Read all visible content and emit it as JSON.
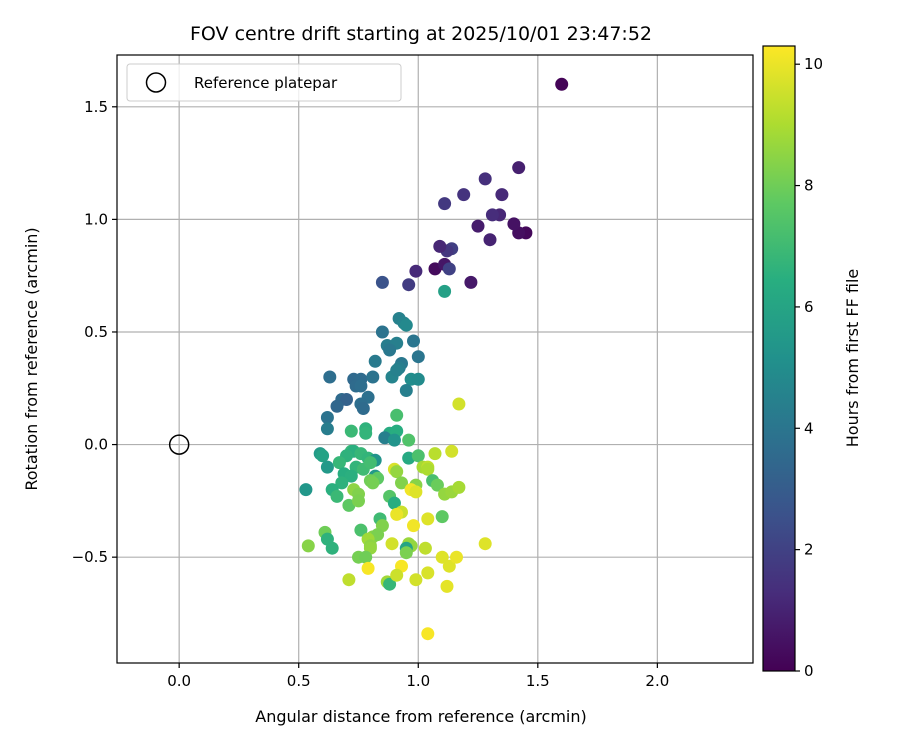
{
  "chart_data": {
    "type": "scatter",
    "title": "FOV centre drift starting at 2025/10/01 23:47:52",
    "xlabel": "Angular distance from reference (arcmin)",
    "ylabel": "Rotation from reference (arcmin)",
    "xlim": [
      -0.26,
      2.4
    ],
    "ylim": [
      -0.97,
      1.73
    ],
    "xticks": [
      0.0,
      0.5,
      1.0,
      1.5,
      2.0
    ],
    "xtick_labels": [
      "0.0",
      "0.5",
      "1.0",
      "1.5",
      "2.0"
    ],
    "yticks": [
      -0.5,
      0.0,
      0.5,
      1.0,
      1.5
    ],
    "ytick_labels": [
      "−0.5",
      "0.0",
      "0.5",
      "1.0",
      "1.5"
    ],
    "grid": true,
    "legend": {
      "location": "top-left",
      "label": "Reference platepar"
    },
    "reference_point": {
      "x": 0.0,
      "y": 0.0
    },
    "colorbar": {
      "label": "Hours from first FF file",
      "range": [
        0,
        10.3
      ],
      "ticks": [
        0,
        2,
        4,
        6,
        8,
        10
      ],
      "tick_labels": [
        "0",
        "2",
        "4",
        "6",
        "8",
        "10"
      ],
      "colormap": "viridis"
    },
    "points": [
      [
        1.6,
        1.6,
        0.1
      ],
      [
        1.45,
        0.94,
        0.2
      ],
      [
        1.42,
        0.94,
        0.4
      ],
      [
        1.4,
        0.98,
        0.5
      ],
      [
        1.42,
        1.23,
        0.9
      ],
      [
        1.34,
        1.02,
        1.1
      ],
      [
        1.31,
        1.02,
        1.3
      ],
      [
        1.35,
        1.11,
        1.2
      ],
      [
        1.28,
        1.18,
        1.4
      ],
      [
        1.3,
        0.91,
        1.0
      ],
      [
        1.25,
        0.97,
        0.8
      ],
      [
        1.19,
        1.11,
        1.5
      ],
      [
        1.11,
        1.07,
        1.7
      ],
      [
        1.14,
        0.87,
        1.9
      ],
      [
        1.12,
        0.86,
        1.6
      ],
      [
        1.09,
        0.88,
        1.1
      ],
      [
        1.07,
        0.78,
        0.3
      ],
      [
        1.11,
        0.8,
        0.6
      ],
      [
        1.13,
        0.78,
        2.0
      ],
      [
        0.99,
        0.77,
        1.2
      ],
      [
        0.96,
        0.71,
        1.8
      ],
      [
        1.22,
        0.72,
        0.7
      ],
      [
        0.85,
        0.72,
        2.6
      ],
      [
        1.11,
        0.68,
        5.8
      ],
      [
        0.92,
        0.56,
        4.5
      ],
      [
        0.94,
        0.54,
        4.6
      ],
      [
        0.95,
        0.53,
        4.8
      ],
      [
        0.85,
        0.5,
        3.9
      ],
      [
        0.87,
        0.44,
        4.3
      ],
      [
        0.91,
        0.45,
        4.4
      ],
      [
        0.98,
        0.46,
        4.0
      ],
      [
        0.88,
        0.42,
        4.1
      ],
      [
        0.82,
        0.37,
        4.2
      ],
      [
        1.0,
        0.39,
        4.0
      ],
      [
        0.93,
        0.36,
        4.1
      ],
      [
        0.92,
        0.34,
        4.3
      ],
      [
        0.89,
        0.3,
        4.6
      ],
      [
        0.91,
        0.33,
        4.5
      ],
      [
        0.97,
        0.29,
        5.0
      ],
      [
        1.0,
        0.29,
        4.9
      ],
      [
        0.73,
        0.29,
        3.5
      ],
      [
        0.76,
        0.29,
        3.6
      ],
      [
        0.81,
        0.3,
        3.9
      ],
      [
        0.63,
        0.3,
        3.7
      ],
      [
        0.74,
        0.26,
        3.6
      ],
      [
        0.76,
        0.26,
        3.7
      ],
      [
        0.95,
        0.24,
        4.4
      ],
      [
        0.79,
        0.21,
        3.8
      ],
      [
        0.68,
        0.2,
        3.6
      ],
      [
        0.7,
        0.2,
        3.2
      ],
      [
        0.66,
        0.17,
        3.4
      ],
      [
        0.76,
        0.18,
        3.7
      ],
      [
        0.77,
        0.16,
        3.6
      ],
      [
        0.62,
        0.12,
        3.9
      ],
      [
        0.62,
        0.07,
        4.3
      ],
      [
        0.91,
        0.13,
        7.2
      ],
      [
        1.17,
        0.18,
        9.6
      ],
      [
        0.72,
        0.06,
        6.9
      ],
      [
        0.78,
        0.07,
        6.6
      ],
      [
        0.78,
        0.05,
        6.7
      ],
      [
        0.88,
        0.05,
        6.3
      ],
      [
        0.91,
        0.06,
        6.4
      ],
      [
        0.86,
        0.03,
        4.4
      ],
      [
        0.9,
        0.02,
        5.3
      ],
      [
        0.96,
        0.02,
        7.4
      ],
      [
        0.72,
        -0.03,
        6.8
      ],
      [
        0.73,
        -0.03,
        6.5
      ],
      [
        0.59,
        -0.04,
        5.6
      ],
      [
        0.6,
        -0.05,
        5.9
      ],
      [
        0.7,
        -0.05,
        6.6
      ],
      [
        0.76,
        -0.04,
        6.8
      ],
      [
        0.79,
        -0.06,
        6.7
      ],
      [
        0.82,
        -0.07,
        5.3
      ],
      [
        0.62,
        -0.1,
        5.5
      ],
      [
        0.67,
        -0.08,
        6.8
      ],
      [
        0.74,
        -0.1,
        6.7
      ],
      [
        0.77,
        -0.11,
        7.0
      ],
      [
        0.8,
        -0.08,
        7.1
      ],
      [
        0.96,
        -0.06,
        6.2
      ],
      [
        1.0,
        -0.05,
        7.3
      ],
      [
        1.07,
        -0.04,
        9.2
      ],
      [
        1.14,
        -0.03,
        9.6
      ],
      [
        0.9,
        -0.11,
        9.7
      ],
      [
        0.91,
        -0.12,
        8.6
      ],
      [
        1.02,
        -0.1,
        8.9
      ],
      [
        1.04,
        -0.1,
        9.3
      ],
      [
        1.04,
        -0.11,
        9.0
      ],
      [
        0.69,
        -0.13,
        6.4
      ],
      [
        0.72,
        -0.14,
        6.5
      ],
      [
        0.82,
        -0.14,
        5.5
      ],
      [
        0.83,
        -0.15,
        7.7
      ],
      [
        0.8,
        -0.16,
        8.0
      ],
      [
        0.81,
        -0.17,
        8.1
      ],
      [
        0.93,
        -0.17,
        8.3
      ],
      [
        0.99,
        -0.18,
        8.4
      ],
      [
        1.06,
        -0.16,
        7.2
      ],
      [
        1.08,
        -0.18,
        7.9
      ],
      [
        0.68,
        -0.17,
        6.6
      ],
      [
        0.73,
        -0.2,
        8.5
      ],
      [
        0.75,
        -0.22,
        8.3
      ],
      [
        0.97,
        -0.2,
        10.1
      ],
      [
        0.99,
        -0.21,
        9.8
      ],
      [
        1.11,
        -0.22,
        8.6
      ],
      [
        1.14,
        -0.21,
        8.7
      ],
      [
        1.17,
        -0.19,
        8.9
      ],
      [
        0.64,
        -0.2,
        6.5
      ],
      [
        0.66,
        -0.23,
        6.9
      ],
      [
        0.88,
        -0.23,
        7.5
      ],
      [
        0.9,
        -0.26,
        6.4
      ],
      [
        0.71,
        -0.27,
        7.7
      ],
      [
        0.75,
        -0.25,
        8.2
      ],
      [
        0.93,
        -0.3,
        9.5
      ],
      [
        0.91,
        -0.31,
        10.0
      ],
      [
        1.04,
        -0.33,
        9.8
      ],
      [
        0.84,
        -0.33,
        7.0
      ],
      [
        0.85,
        -0.36,
        8.3
      ],
      [
        0.98,
        -0.36,
        10.1
      ],
      [
        1.1,
        -0.32,
        7.7
      ],
      [
        0.76,
        -0.38,
        7.3
      ],
      [
        0.81,
        -0.41,
        8.4
      ],
      [
        0.83,
        -0.4,
        8.2
      ],
      [
        0.79,
        -0.42,
        8.8
      ],
      [
        0.8,
        -0.45,
        8.5
      ],
      [
        0.8,
        -0.46,
        8.6
      ],
      [
        0.89,
        -0.44,
        9.6
      ],
      [
        0.96,
        -0.44,
        8.7
      ],
      [
        0.97,
        -0.45,
        8.6
      ],
      [
        1.03,
        -0.46,
        9.3
      ],
      [
        0.95,
        -0.46,
        6.0
      ],
      [
        0.95,
        -0.48,
        8.2
      ],
      [
        0.53,
        -0.2,
        5.4
      ],
      [
        0.54,
        -0.45,
        8.4
      ],
      [
        0.61,
        -0.39,
        8.0
      ],
      [
        0.62,
        -0.42,
        6.6
      ],
      [
        0.64,
        -0.46,
        6.6
      ],
      [
        0.75,
        -0.5,
        8.1
      ],
      [
        0.78,
        -0.5,
        8.0
      ],
      [
        1.1,
        -0.5,
        9.8
      ],
      [
        1.13,
        -0.54,
        9.8
      ],
      [
        1.16,
        -0.5,
        10.0
      ],
      [
        1.28,
        -0.44,
        9.8
      ],
      [
        0.79,
        -0.55,
        10.2
      ],
      [
        0.93,
        -0.54,
        10.2
      ],
      [
        0.71,
        -0.6,
        9.3
      ],
      [
        0.87,
        -0.61,
        8.8
      ],
      [
        0.88,
        -0.62,
        6.8
      ],
      [
        0.91,
        -0.58,
        9.5
      ],
      [
        0.99,
        -0.6,
        9.6
      ],
      [
        1.04,
        -0.57,
        9.7
      ],
      [
        1.12,
        -0.63,
        9.9
      ],
      [
        1.04,
        -0.84,
        10.2
      ]
    ]
  }
}
